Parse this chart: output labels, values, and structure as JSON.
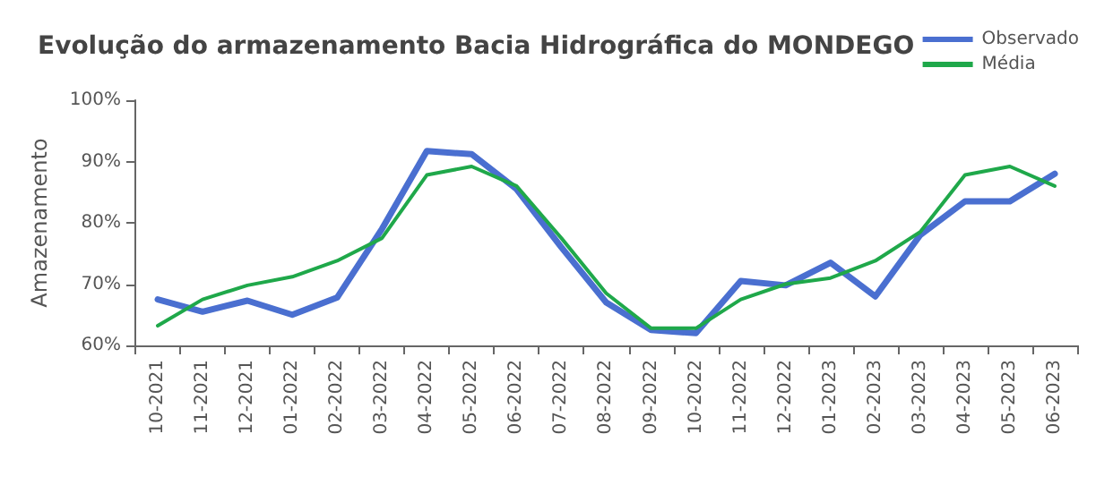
{
  "chart_data": {
    "type": "line",
    "title": "Evolução do armazenamento Bacia Hidrográfica do MONDEGO",
    "ylabel": "Amazenamento",
    "categories": [
      "10-2021",
      "11-2021",
      "12-2021",
      "01-2022",
      "02-2022",
      "03-2022",
      "04-2022",
      "05-2022",
      "06-2022",
      "07-2022",
      "08-2022",
      "09-2022",
      "10-2022",
      "11-2022",
      "12-2022",
      "01-2023",
      "02-2023",
      "03-2023",
      "04-2023",
      "05-2023",
      "06-2023"
    ],
    "series": [
      {
        "name": "Observado",
        "color": "#4a6fd0",
        "values": [
          67.5,
          65.5,
          67.3,
          65,
          67.8,
          79,
          91.7,
          91.2,
          85.5,
          76,
          67,
          62.5,
          62,
          70.5,
          69.8,
          73.5,
          68,
          78,
          83.5,
          83.5,
          88
        ]
      },
      {
        "name": "Média",
        "color": "#1fa84a",
        "values": [
          63.2,
          67.5,
          69.8,
          71.2,
          73.8,
          77.5,
          87.8,
          89.2,
          86,
          77.5,
          68.5,
          62.8,
          62.8,
          67.5,
          70,
          71,
          73.8,
          78.5,
          87.8,
          89.2,
          86
        ]
      }
    ],
    "ylim": [
      60,
      100
    ],
    "yticks": [
      {
        "value": 60,
        "label": "60%"
      },
      {
        "value": 70,
        "label": "70%"
      },
      {
        "value": 80,
        "label": "80%"
      },
      {
        "value": 90,
        "label": "90%"
      },
      {
        "value": 100,
        "label": "100%"
      }
    ],
    "grid": false,
    "legend": "top right",
    "marker": "none"
  }
}
